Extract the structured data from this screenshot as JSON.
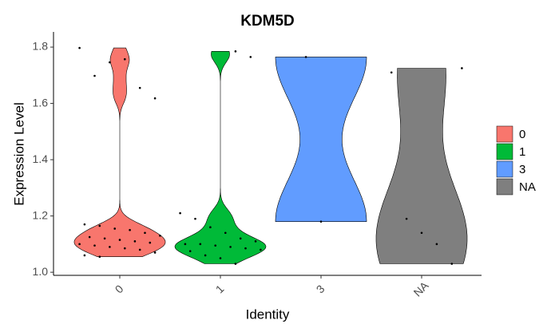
{
  "chart_data": {
    "type": "violin",
    "title": "KDM5D",
    "x_label": "Identity",
    "y_label": "Expression Level",
    "categories": [
      "0",
      "1",
      "3",
      "NA"
    ],
    "series": [
      {
        "name": "0",
        "color": "#F8766D",
        "values": [
          1.797,
          1.698,
          1.746,
          1.757,
          1.655,
          1.618,
          1.17,
          1.165,
          1.155,
          1.15,
          1.14,
          1.13,
          1.125,
          1.12,
          1.115,
          1.11,
          1.105,
          1.1,
          1.095,
          1.09,
          1.085,
          1.08,
          1.07,
          1.06,
          1.055
        ]
      },
      {
        "name": "1",
        "color": "#00BA38",
        "values": [
          1.785,
          1.765,
          1.21,
          1.19,
          1.16,
          1.14,
          1.12,
          1.11,
          1.1,
          1.1,
          1.095,
          1.09,
          1.085,
          1.08,
          1.075,
          1.06,
          1.05,
          1.03
        ]
      },
      {
        "name": "3",
        "color": "#619CFF",
        "values": [
          1.765,
          1.18
        ]
      },
      {
        "name": "NA",
        "color": "#7F7F7F",
        "values": [
          1.725,
          1.71,
          1.19,
          1.14,
          1.1,
          1.03
        ]
      }
    ],
    "ylim": [
      0.989,
      1.854
    ],
    "yticks": [
      {
        "value": 1,
        "label": "1.0"
      },
      1.2,
      1.4,
      1.6,
      1.8
    ]
  }
}
